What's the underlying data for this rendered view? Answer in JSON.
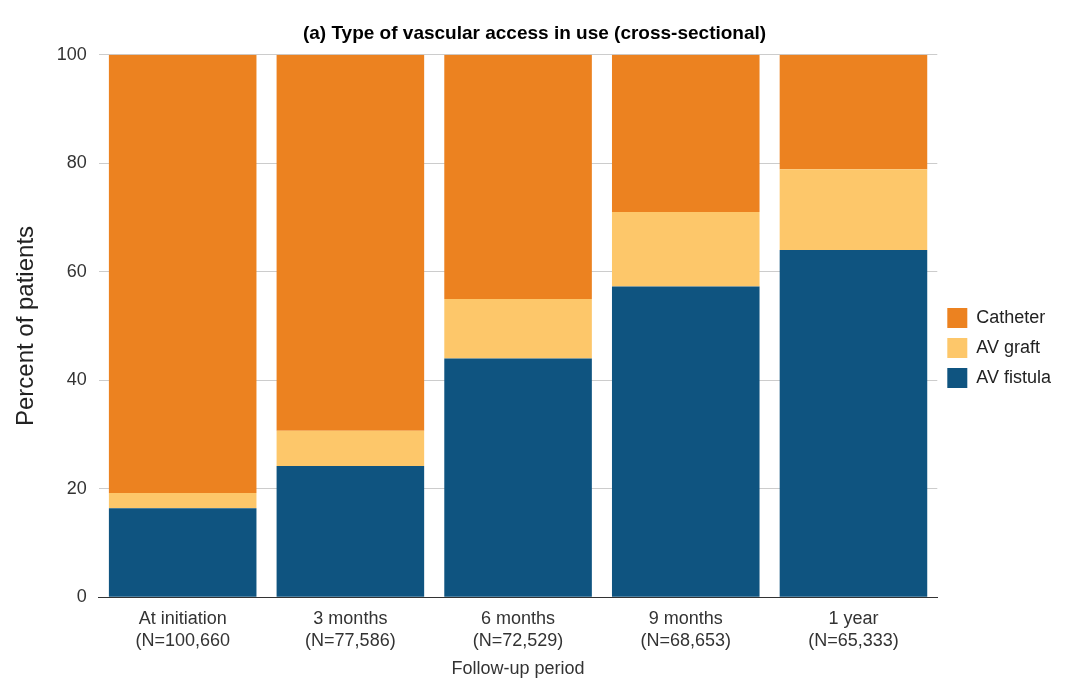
{
  "chart_data": {
    "type": "bar",
    "title": "(a) Type of vascular access in use (cross-sectional)",
    "xlabel": "Follow-up period",
    "ylabel": "Percent of patients",
    "categories": [
      "At initiation\n(N=100,660",
      "3 months\n(N=77,586)",
      "6 months\n(N=72,529)",
      "9 months\n(N=68,653)",
      "1 year\n(N=65,333)"
    ],
    "series": [
      {
        "name": "AV fistula",
        "color": "#0f5480",
        "values": [
          16.4,
          24.2,
          44.0,
          57.3,
          64.0
        ]
      },
      {
        "name": "AV graft",
        "color": "#fdc76a",
        "values": [
          2.8,
          6.5,
          11.0,
          13.7,
          14.9
        ]
      },
      {
        "name": "Catheter",
        "color": "#ec8220",
        "values": [
          80.8,
          69.3,
          45.0,
          29.0,
          21.1
        ]
      }
    ],
    "stacked": true,
    "ylim": [
      0,
      100
    ],
    "yticks": [
      0,
      20,
      40,
      60,
      80,
      100
    ],
    "grid": "y",
    "legend": "right"
  }
}
